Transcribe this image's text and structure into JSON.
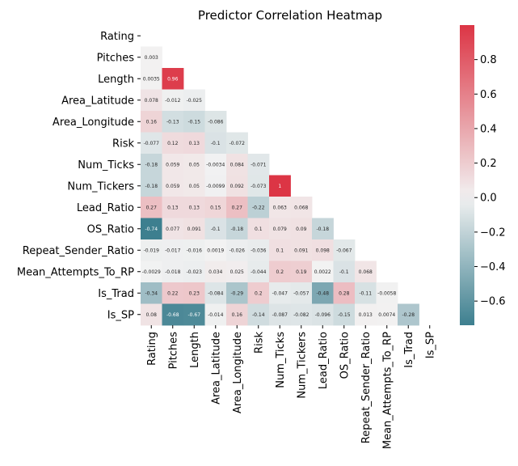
{
  "chart_data": {
    "type": "heatmap",
    "title": "Predictor Correlation Heatmap",
    "variables": [
      "Rating",
      "Pitches",
      "Length",
      "Area_Latitude",
      "Area_Longitude",
      "Risk",
      "Num_Ticks",
      "Num_Tickers",
      "Lead_Ratio",
      "OS_Ratio",
      "Repeat_Sender_Ratio",
      "Mean_Attempts_To_RP",
      "Is_Trad",
      "Is_SP"
    ],
    "mask": "upper-triangle including diagonal",
    "lower_triangle": [
      [],
      [
        0.003
      ],
      [
        0.0035,
        0.96
      ],
      [
        0.078,
        -0.012,
        -0.025
      ],
      [
        0.16,
        -0.13,
        -0.15,
        -0.086
      ],
      [
        -0.077,
        0.12,
        0.13,
        -0.1,
        -0.072
      ],
      [
        -0.18,
        0.059,
        0.05,
        -0.0034,
        0.084,
        -0.071
      ],
      [
        -0.18,
        0.059,
        0.05,
        -0.0099,
        0.092,
        -0.073,
        1
      ],
      [
        0.27,
        0.13,
        0.13,
        0.15,
        0.27,
        -0.22,
        0.063,
        0.068
      ],
      [
        -0.74,
        0.077,
        0.091,
        -0.1,
        -0.18,
        0.1,
        0.079,
        0.09,
        -0.18
      ],
      [
        -0.019,
        -0.017,
        -0.016,
        0.0019,
        -0.026,
        -0.036,
        0.1,
        0.091,
        0.098,
        -0.067
      ],
      [
        -0.0029,
        -0.018,
        -0.023,
        0.034,
        0.025,
        -0.044,
        0.2,
        0.19,
        0.0022,
        -0.1,
        0.068
      ],
      [
        -0.34,
        0.22,
        0.23,
        -0.084,
        -0.29,
        0.2,
        -0.047,
        -0.057,
        -0.48,
        0.28,
        -0.11,
        -0.0058
      ],
      [
        0.08,
        -0.68,
        -0.67,
        -0.014,
        0.16,
        -0.14,
        -0.087,
        -0.082,
        -0.096,
        -0.15,
        0.013,
        0.0074,
        -0.28
      ]
    ],
    "colorbar": {
      "min": -0.74,
      "max": 1.0,
      "ticks": [
        -0.6,
        -0.4,
        -0.2,
        0.0,
        0.2,
        0.4,
        0.6,
        0.8
      ],
      "tick_labels": [
        "−0.6",
        "−0.4",
        "−0.2",
        "0.0",
        "0.2",
        "0.4",
        "0.6",
        "0.8"
      ]
    },
    "colormap": {
      "negative": "#3d7f8f",
      "center": "#f2f2f2",
      "positive": "#dc3545"
    }
  }
}
